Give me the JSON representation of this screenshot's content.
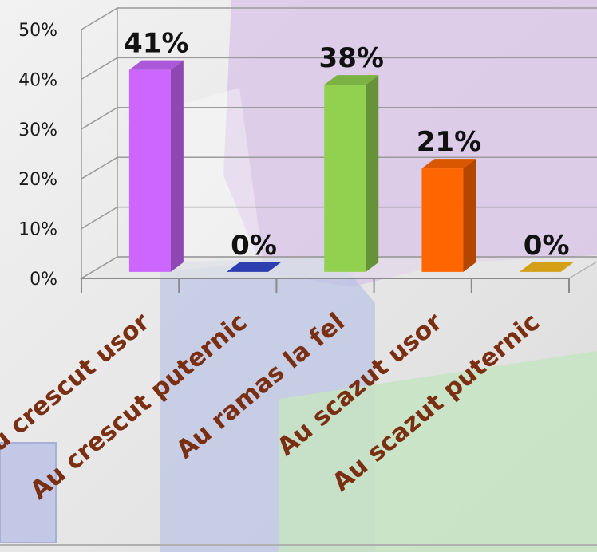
{
  "chart_data": {
    "type": "bar",
    "categories": [
      "Au crescut usor",
      "Au crescut puternic",
      "Au ramas la fel",
      "Au scazut usor",
      "Au scazut puternic"
    ],
    "values": [
      41,
      0,
      38,
      21,
      0
    ],
    "data_labels": [
      "41%",
      "0%",
      "38%",
      "21%",
      "0%"
    ],
    "y_ticks": [
      "0%",
      "10%",
      "20%",
      "30%",
      "40%",
      "50%"
    ],
    "ylim": [
      0,
      50
    ],
    "grid": true,
    "three_d": true,
    "colors": [
      "#cc66ff",
      "#2d3fb0",
      "#92d050",
      "#ff6600",
      "#d4a017"
    ],
    "label_color": "#7a2e12",
    "title": "",
    "xlabel": "",
    "ylabel": ""
  }
}
